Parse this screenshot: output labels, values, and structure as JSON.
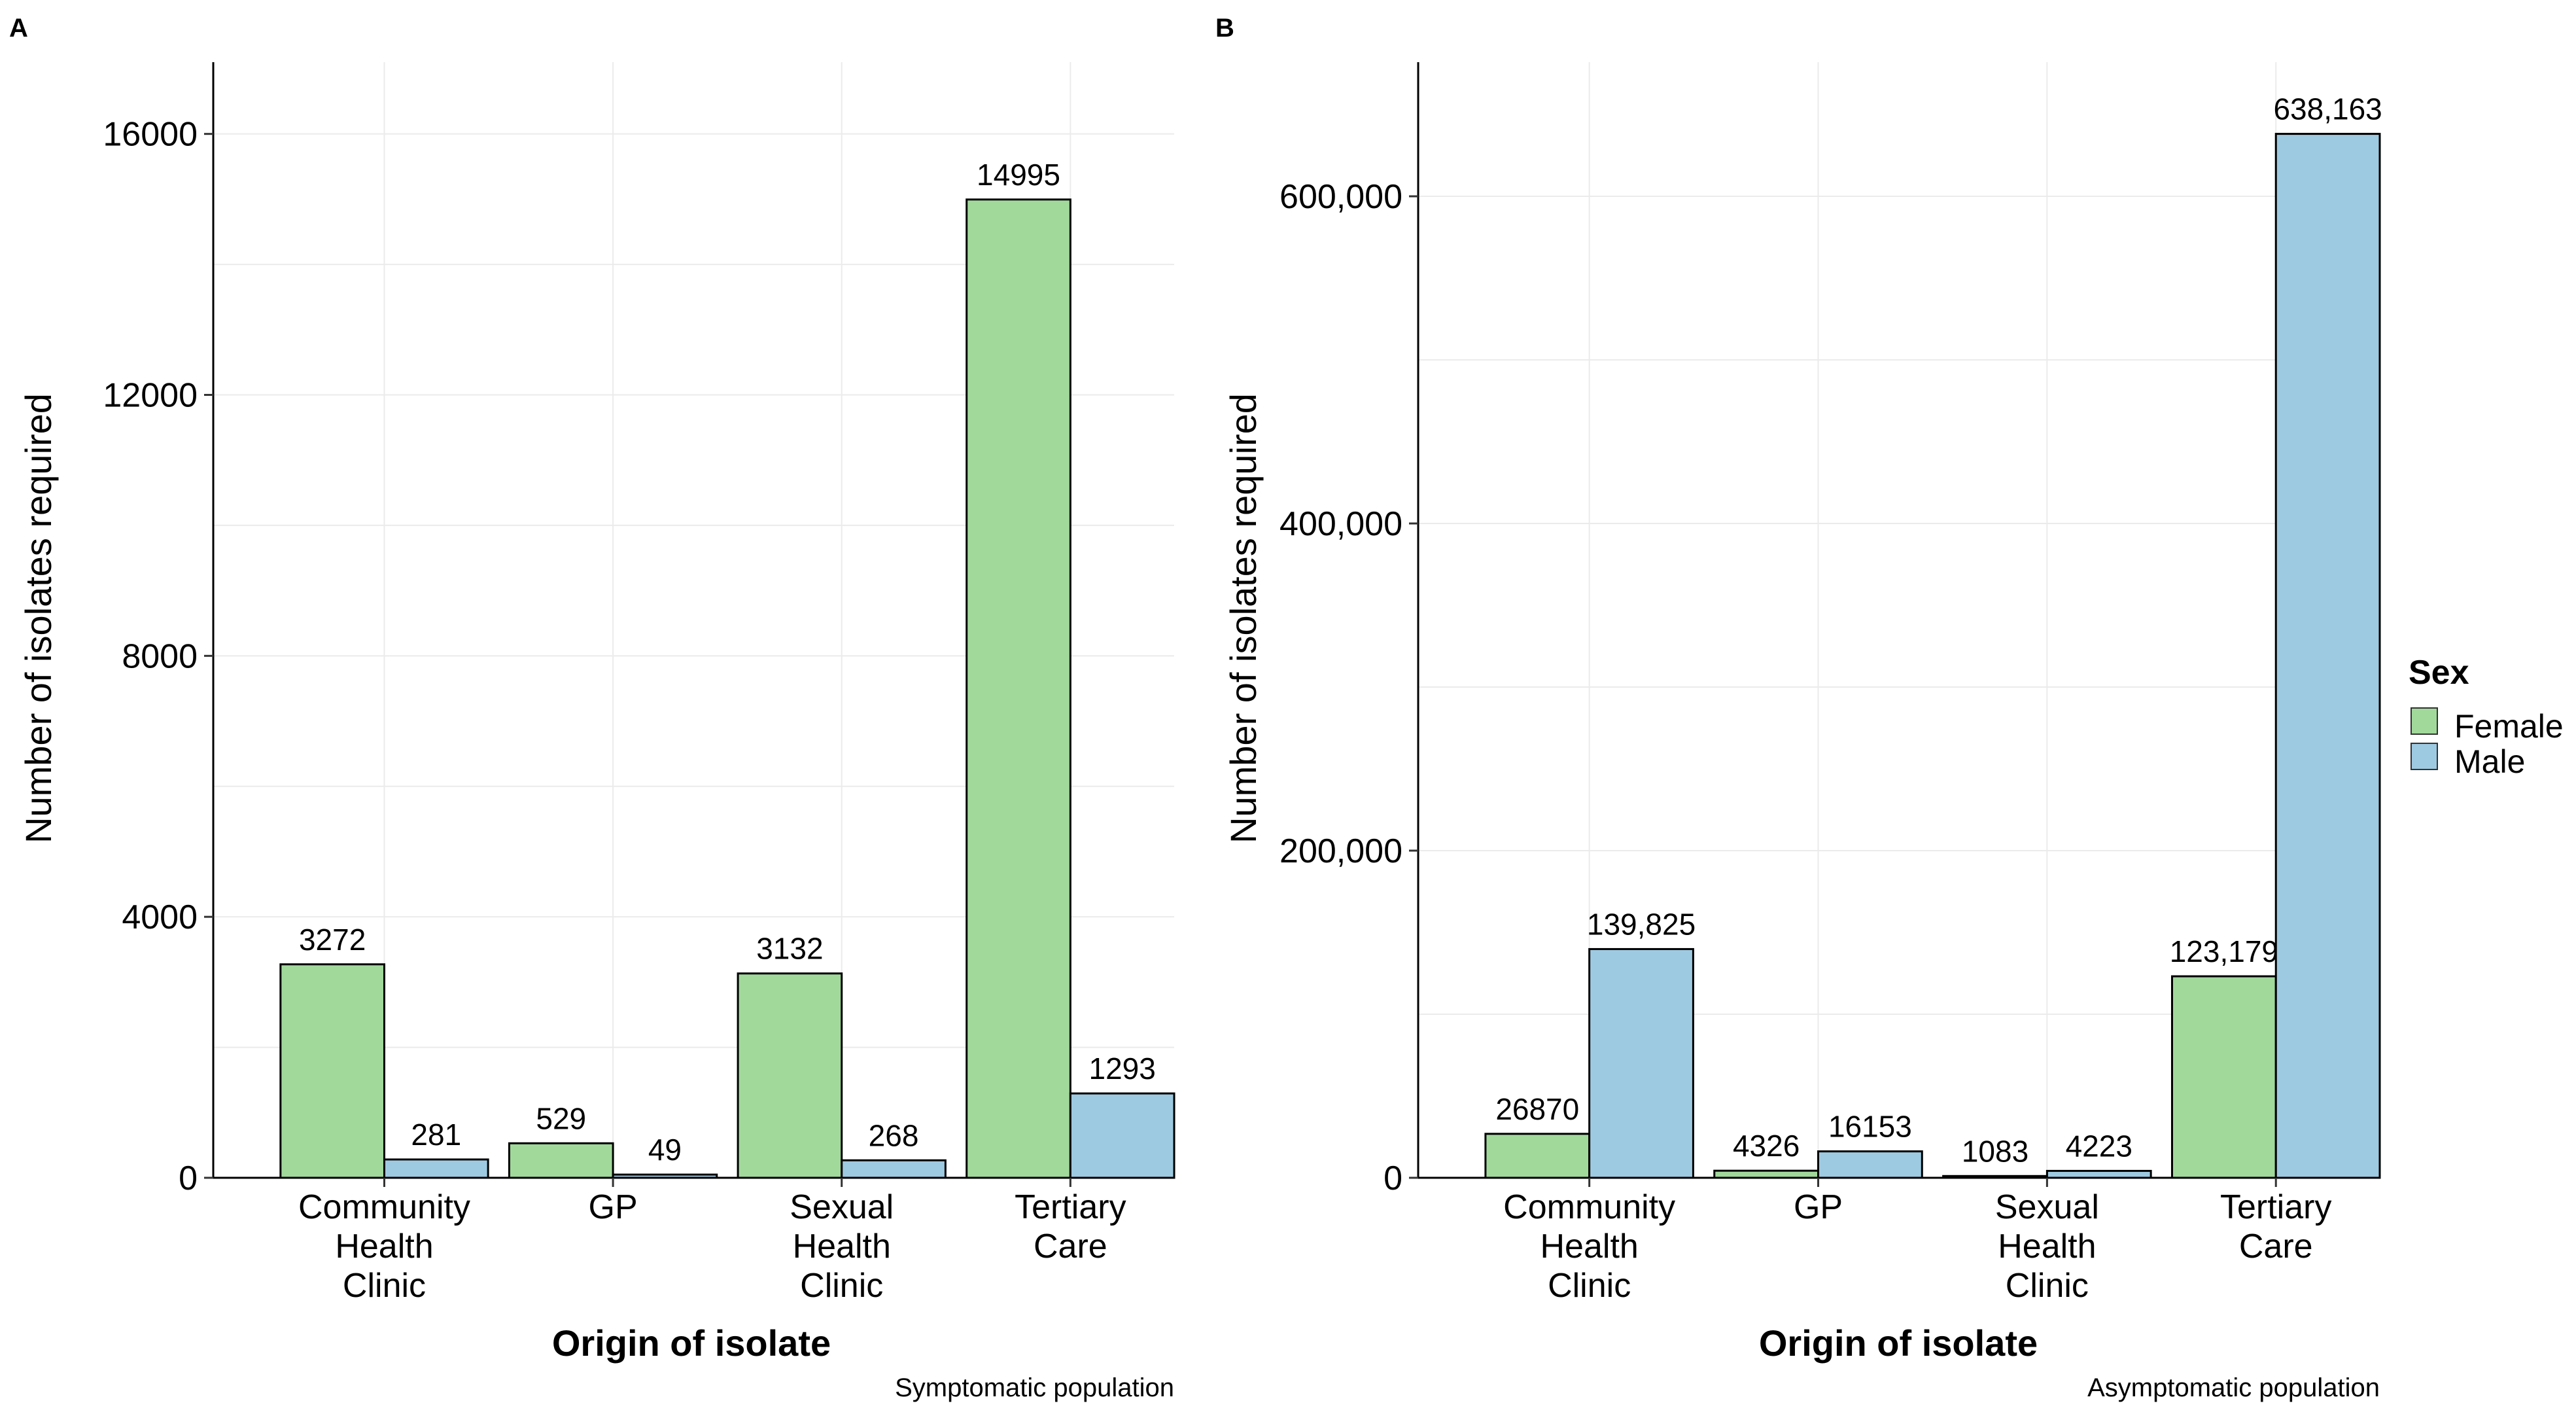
{
  "chart_data": [
    {
      "type": "bar",
      "panel": "A",
      "title": "",
      "caption": "Symptomatic population",
      "xlabel": "Origin of isolate",
      "ylabel": "Number of isolates required",
      "categories": [
        [
          "Community",
          "Health",
          "Clinic"
        ],
        [
          "GP"
        ],
        [
          "Sexual",
          "Health",
          "Clinic"
        ],
        [
          "Tertiary",
          "Care"
        ]
      ],
      "series": [
        {
          "name": "Female",
          "color": "#a1d99b",
          "values": [
            3272,
            529,
            3132,
            14995
          ],
          "labels": [
            "3272",
            "529",
            "3132",
            "14995"
          ]
        },
        {
          "name": "Male",
          "color": "#9ecae1",
          "values": [
            281,
            49,
            268,
            1293
          ],
          "labels": [
            "281",
            "49",
            "268",
            "1293"
          ]
        }
      ],
      "yticks": [
        0,
        4000,
        8000,
        12000,
        16000
      ],
      "ytick_labels": [
        "0",
        "4000",
        "8000",
        "12000",
        "16000"
      ],
      "ylim": [
        0,
        17100
      ],
      "grid": true
    },
    {
      "type": "bar",
      "panel": "B",
      "title": "",
      "caption": "Asymptomatic population",
      "xlabel": "Origin of isolate",
      "ylabel": "Number of isolates required",
      "categories": [
        [
          "Community",
          "Health",
          "Clinic"
        ],
        [
          "GP"
        ],
        [
          "Sexual",
          "Health",
          "Clinic"
        ],
        [
          "Tertiary",
          "Care"
        ]
      ],
      "series": [
        {
          "name": "Female",
          "color": "#a1d99b",
          "values": [
            26870,
            4326,
            1083,
            123179
          ],
          "labels": [
            "26870",
            "4326",
            "1083",
            "123,179"
          ]
        },
        {
          "name": "Male",
          "color": "#9ecae1",
          "values": [
            139825,
            16153,
            4223,
            638163
          ],
          "labels": [
            "139,825",
            "16153",
            "4223",
            "638,163"
          ]
        }
      ],
      "yticks": [
        0,
        200000,
        400000,
        600000
      ],
      "ytick_labels": [
        "0",
        "200,000",
        "400,000",
        "600,000"
      ],
      "ylim": [
        0,
        682000
      ],
      "grid": true
    }
  ],
  "legend": {
    "title": "Sex",
    "placement": "right",
    "items": [
      {
        "label": "Female",
        "color": "#a1d99b"
      },
      {
        "label": "Male",
        "color": "#9ecae1"
      }
    ]
  }
}
